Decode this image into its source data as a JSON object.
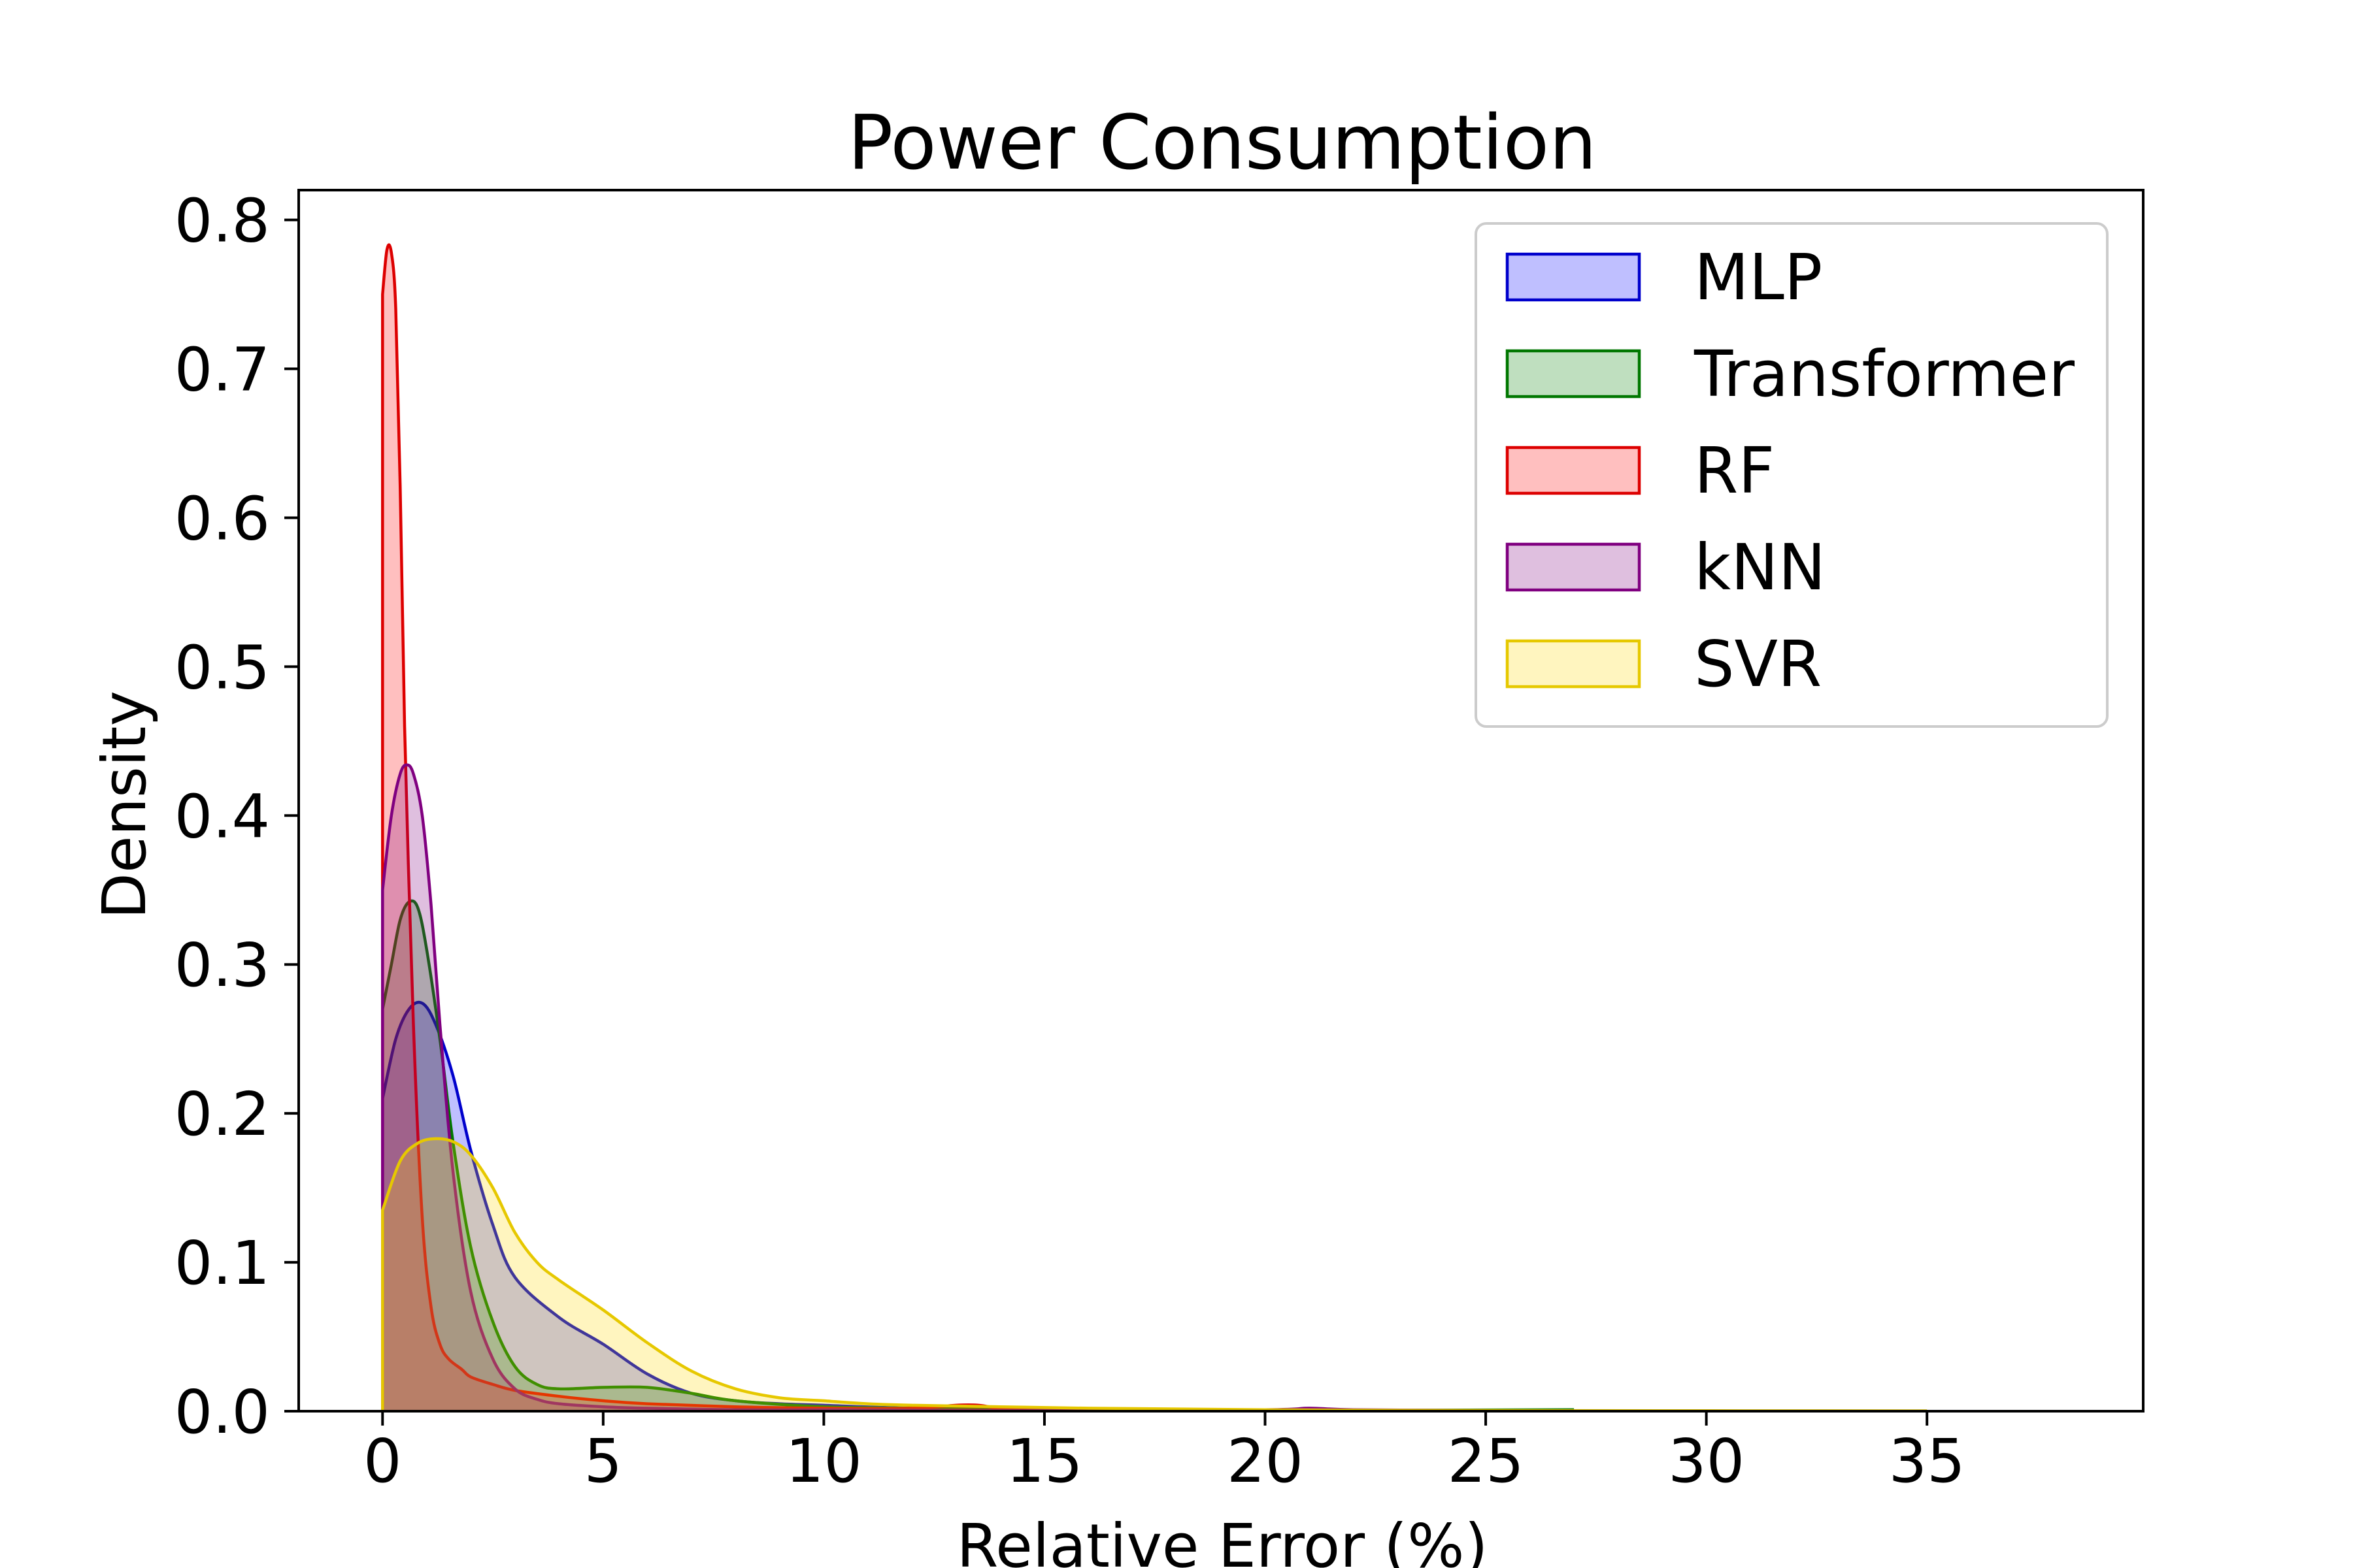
{
  "chart_data": {
    "type": "area",
    "title": "Power Consumption",
    "xlabel": "Relative Error (%)",
    "ylabel": "Density",
    "xlim": [
      -1.9,
      39.9
    ],
    "ylim": [
      0.0,
      0.82
    ],
    "xticks": [
      0,
      5,
      10,
      15,
      20,
      25,
      30,
      35
    ],
    "yticks": [
      0.0,
      0.1,
      0.2,
      0.3,
      0.4,
      0.5,
      0.6,
      0.7,
      0.8
    ],
    "xtick_labels": [
      "0",
      "5",
      "10",
      "15",
      "20",
      "25",
      "30",
      "35"
    ],
    "ytick_labels": [
      "0.0",
      "0.1",
      "0.2",
      "0.3",
      "0.4",
      "0.5",
      "0.6",
      "0.7",
      "0.8"
    ],
    "grid": false,
    "legend_position": "top-right",
    "series": [
      {
        "name": "MLP",
        "color": "#0000cc",
        "fill": "#0000ff",
        "x": [
          0,
          0.3,
          0.6,
          0.9,
          1.2,
          1.6,
          2.0,
          2.5,
          3.0,
          4.0,
          5.0,
          6.0,
          7.0,
          8.0,
          9.0,
          10.0,
          12.0,
          15.0,
          20.0,
          25.0
        ],
        "y": [
          0.21,
          0.25,
          0.27,
          0.274,
          0.26,
          0.225,
          0.175,
          0.125,
          0.09,
          0.063,
          0.045,
          0.025,
          0.012,
          0.007,
          0.005,
          0.004,
          0.002,
          0.001,
          0.0005,
          0.0003
        ]
      },
      {
        "name": "Transformer",
        "color": "#007700",
        "fill": "#008000",
        "x": [
          0,
          0.2,
          0.4,
          0.6,
          0.8,
          1.0,
          1.3,
          1.6,
          2.0,
          2.5,
          3.0,
          3.5,
          4.0,
          5.0,
          6.0,
          7.0,
          8.0,
          10.0,
          12.0,
          15.0,
          20.0,
          27.0
        ],
        "y": [
          0.27,
          0.3,
          0.33,
          0.342,
          0.338,
          0.31,
          0.25,
          0.18,
          0.11,
          0.06,
          0.03,
          0.018,
          0.015,
          0.016,
          0.016,
          0.012,
          0.007,
          0.003,
          0.002,
          0.001,
          0.0005,
          0.001
        ]
      },
      {
        "name": "RF",
        "color": "#dd0000",
        "fill": "#ff0000",
        "x": [
          0,
          0.1,
          0.2,
          0.3,
          0.4,
          0.5,
          0.7,
          0.9,
          1.1,
          1.3,
          1.5,
          1.8,
          2.0,
          2.5,
          3.0,
          4.0,
          5.0,
          6.0,
          8.0,
          10.0,
          12.0,
          13.0,
          13.5,
          14.0,
          15.0,
          20.0,
          25.0
        ],
        "y": [
          0.75,
          0.78,
          0.778,
          0.74,
          0.62,
          0.46,
          0.26,
          0.13,
          0.07,
          0.045,
          0.035,
          0.028,
          0.023,
          0.018,
          0.014,
          0.01,
          0.007,
          0.005,
          0.003,
          0.002,
          0.002,
          0.004,
          0.004,
          0.002,
          0.001,
          0.0005,
          0.0003
        ]
      },
      {
        "name": "kNN",
        "color": "#800080",
        "fill": "#800080",
        "x": [
          0,
          0.2,
          0.4,
          0.55,
          0.7,
          0.9,
          1.1,
          1.3,
          1.6,
          2.0,
          2.5,
          3.0,
          3.5,
          4.0,
          5.0,
          6.0,
          8.0,
          10.0,
          15.0,
          20.0,
          21.0,
          22.0,
          25.0
        ],
        "y": [
          0.35,
          0.4,
          0.428,
          0.434,
          0.428,
          0.4,
          0.34,
          0.26,
          0.16,
          0.08,
          0.035,
          0.015,
          0.008,
          0.005,
          0.003,
          0.002,
          0.001,
          0.001,
          0.0005,
          0.001,
          0.002,
          0.001,
          0.0005
        ]
      },
      {
        "name": "SVR",
        "color": "#e6c800",
        "fill": "#ffd700",
        "x": [
          0,
          0.4,
          0.8,
          1.2,
          1.6,
          2.0,
          2.5,
          3.0,
          3.5,
          4.0,
          5.0,
          6.0,
          7.0,
          8.0,
          9.0,
          10.0,
          11.0,
          12.0,
          14.0,
          16.0,
          20.0,
          25.0,
          30.0,
          35.0
        ],
        "y": [
          0.135,
          0.168,
          0.18,
          0.183,
          0.181,
          0.172,
          0.15,
          0.12,
          0.1,
          0.088,
          0.068,
          0.046,
          0.027,
          0.015,
          0.009,
          0.007,
          0.005,
          0.004,
          0.003,
          0.002,
          0.001,
          0.0005,
          0.0003,
          0.0002
        ]
      }
    ]
  }
}
